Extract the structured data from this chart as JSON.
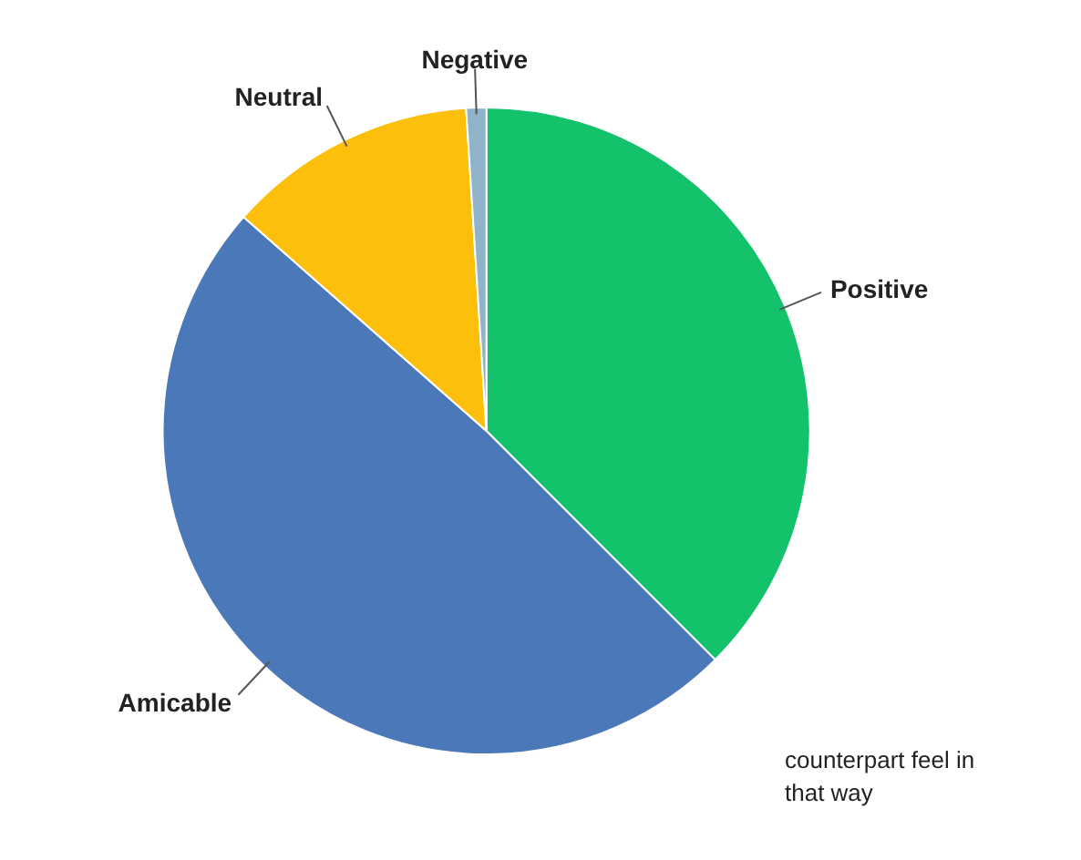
{
  "chart_data": {
    "type": "pie",
    "categories": [
      "Positive",
      "Amicable",
      "Neutral",
      "Negative"
    ],
    "values": [
      37.5,
      49,
      12.5,
      1
    ],
    "colors": [
      "#13c26b",
      "#4a78b8",
      "#fbbf0c",
      "#8fb3c9"
    ],
    "annotations": [
      "counterpart feel in\nthat way"
    ]
  }
}
